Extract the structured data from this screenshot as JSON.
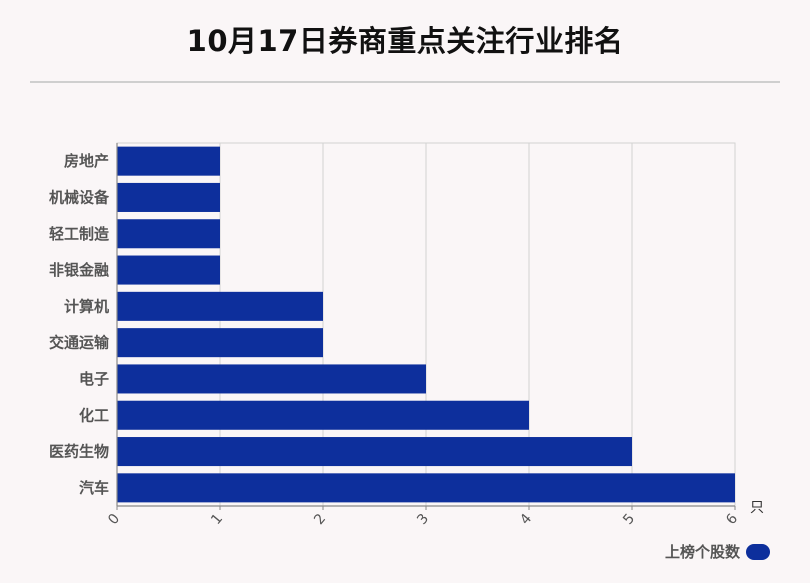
{
  "title": "10月17日券商重点关注行业排名",
  "colors": {
    "bar": "#0d2f9c",
    "grid": "#d2d2d2",
    "axis": "#888888",
    "label": "#555555"
  },
  "chart_data": {
    "type": "bar",
    "orientation": "horizontal",
    "title": "10月17日券商重点关注行业排名",
    "categories": [
      "房地产",
      "机械设备",
      "轻工制造",
      "非银金融",
      "计算机",
      "交通运输",
      "电子",
      "化工",
      "医药生物",
      "汽车"
    ],
    "series": [
      {
        "name": "上榜个股数",
        "values": [
          1,
          1,
          1,
          1,
          2,
          2,
          3,
          4,
          5,
          6
        ]
      }
    ],
    "xlim": [
      0,
      6
    ],
    "x_ticks": [
      0,
      1,
      2,
      3,
      4,
      5,
      6
    ],
    "x_unit": "只",
    "grid": true,
    "legend": "bottom-right"
  }
}
